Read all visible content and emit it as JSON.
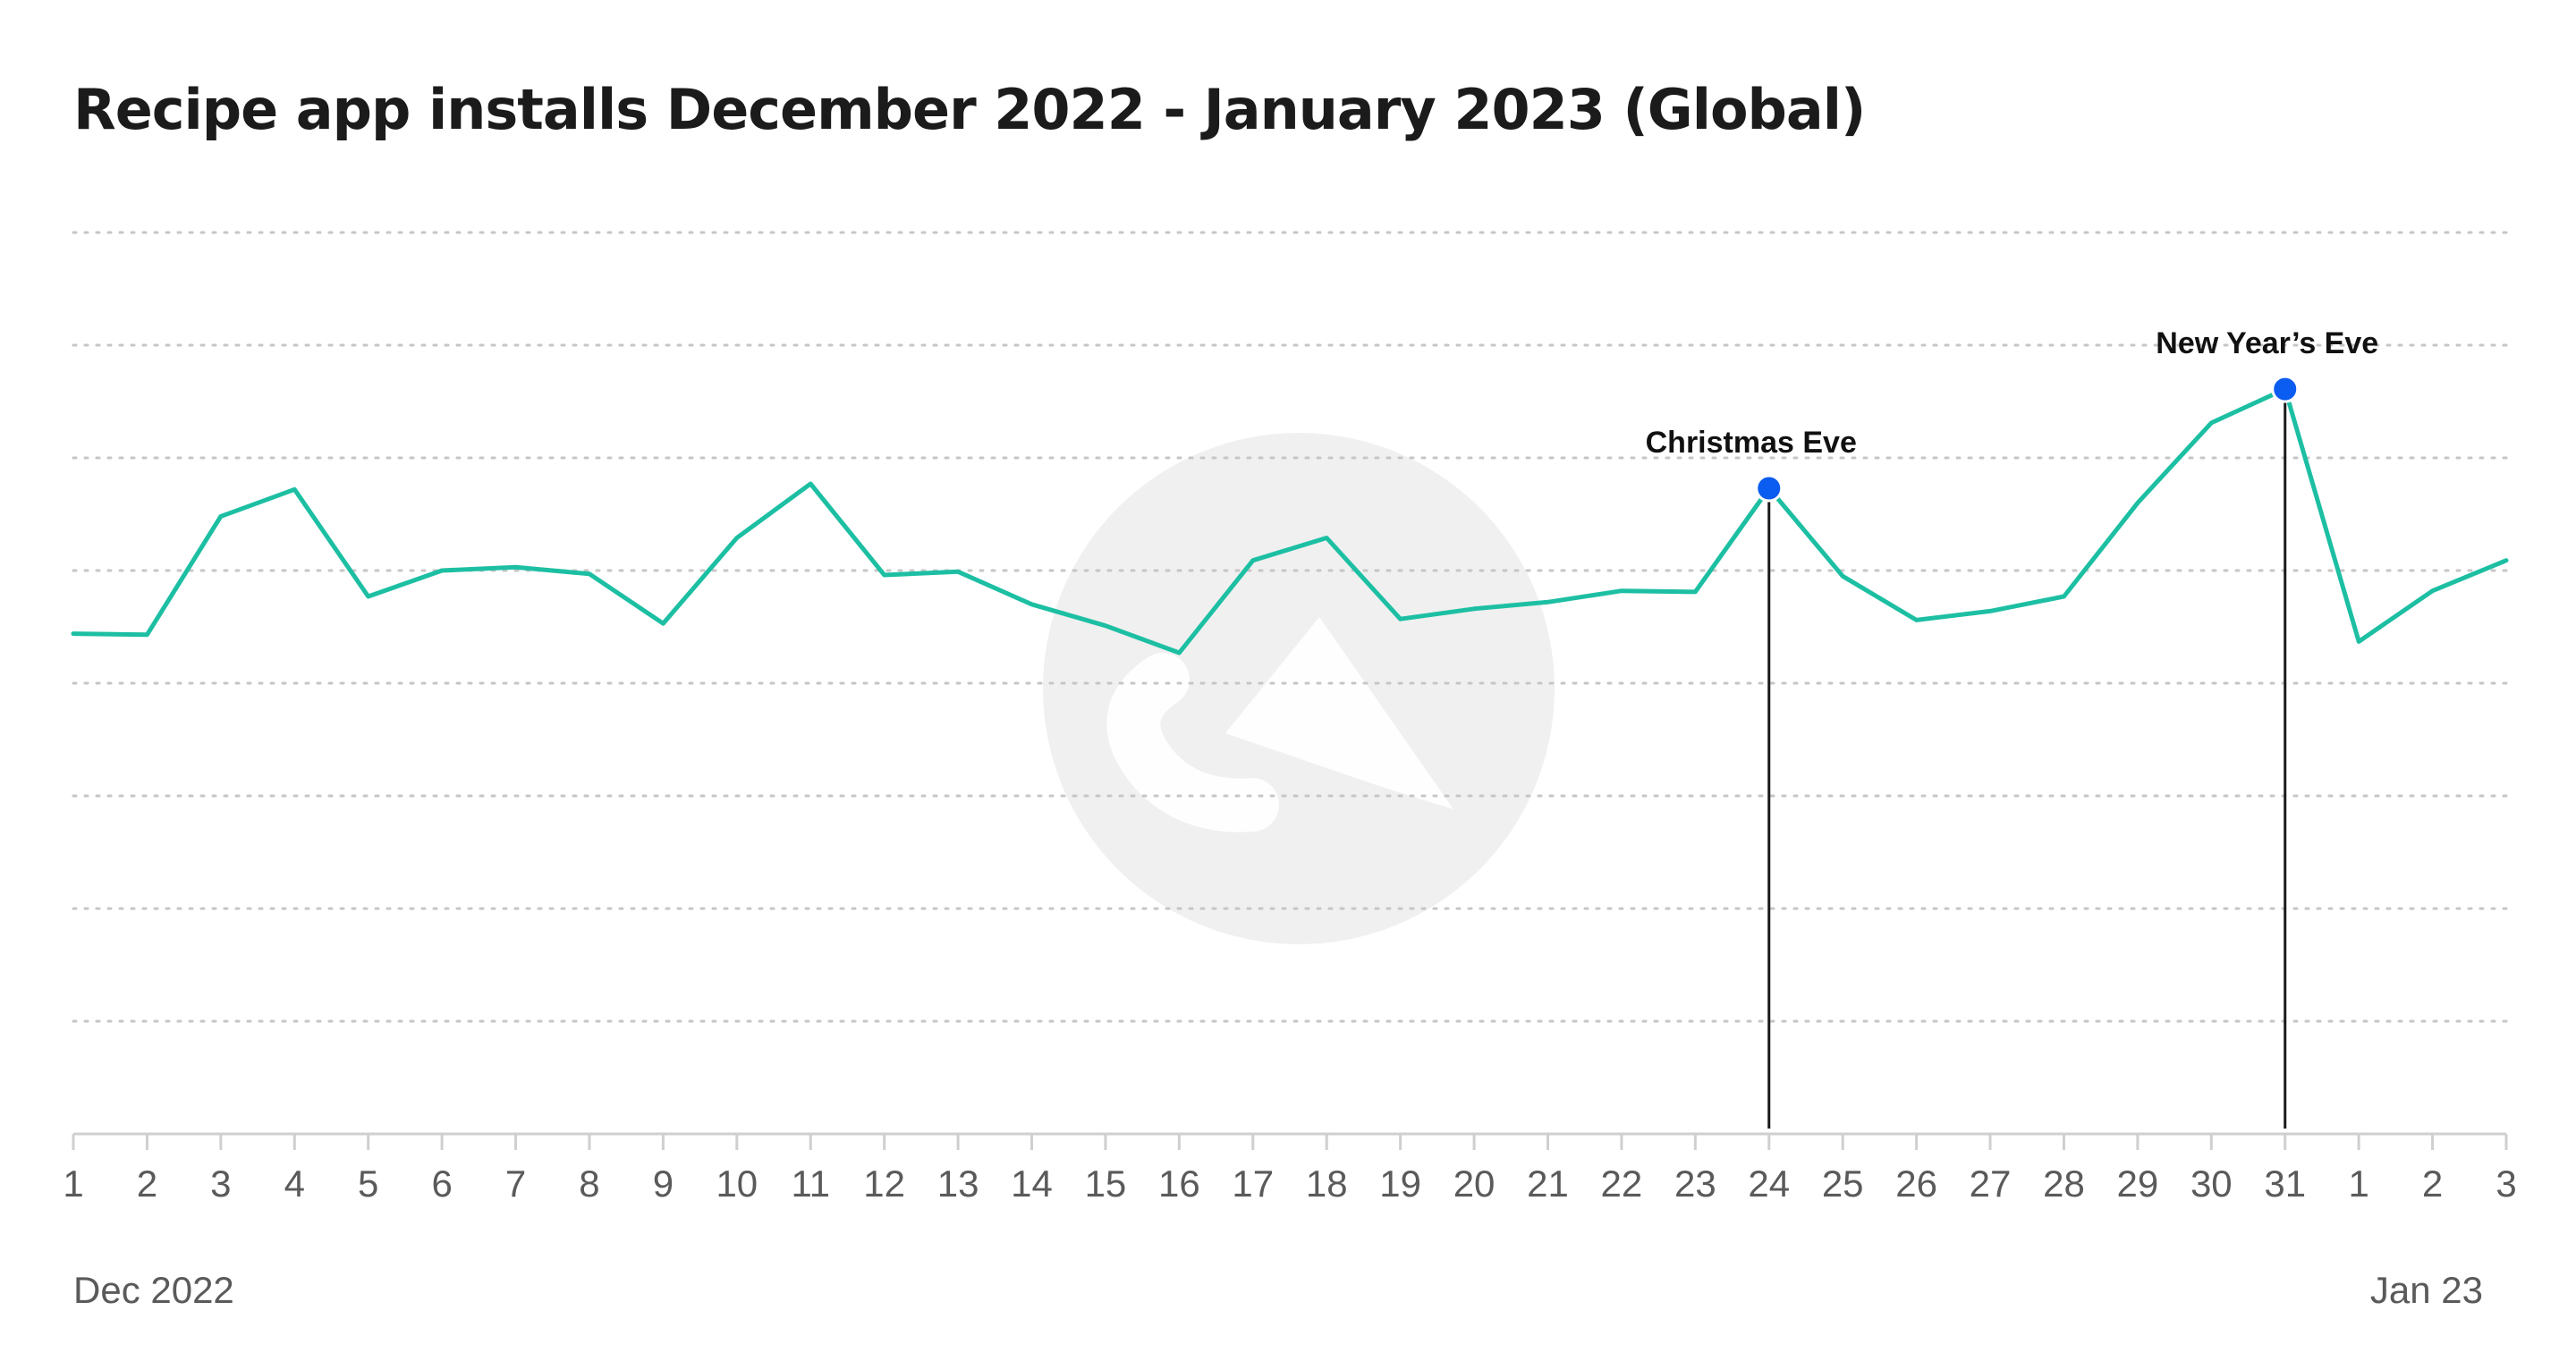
{
  "chart_data": {
    "type": "line",
    "title": "Recipe app installs December 2022 - January 2023 (Global)",
    "xlabel": "",
    "ylabel": "",
    "x": [
      "1",
      "2",
      "3",
      "4",
      "5",
      "6",
      "7",
      "8",
      "9",
      "10",
      "11",
      "12",
      "13",
      "14",
      "15",
      "16",
      "17",
      "18",
      "19",
      "20",
      "21",
      "22",
      "23",
      "24",
      "25",
      "26",
      "27",
      "28",
      "29",
      "30",
      "31",
      "1",
      "2",
      "3"
    ],
    "period_labels": {
      "start": "Dec 2022",
      "end": "Jan 23"
    },
    "series": [
      {
        "values": [
          4.44,
          4.43,
          5.48,
          5.72,
          4.77,
          5.0,
          5.03,
          4.97,
          4.53,
          5.29,
          5.77,
          4.96,
          4.99,
          4.7,
          4.51,
          4.27,
          5.09,
          5.29,
          4.57,
          4.66,
          4.72,
          4.82,
          4.81,
          5.73,
          4.95,
          4.56,
          4.64,
          4.77,
          5.6,
          6.31,
          6.61,
          4.37,
          4.82,
          5.09
        ]
      }
    ],
    "annotations": [
      {
        "index": 23,
        "label": "Christmas Eve"
      },
      {
        "index": 30,
        "label": "New Year’s Eve"
      }
    ],
    "ylim": [
      0,
      8
    ],
    "grid": true,
    "legend": "none",
    "colors": {
      "line": "#1dbfa3",
      "marker": "#0b5cf0",
      "grid": "#c6c6c6",
      "axis": "#cfcfcf"
    }
  }
}
